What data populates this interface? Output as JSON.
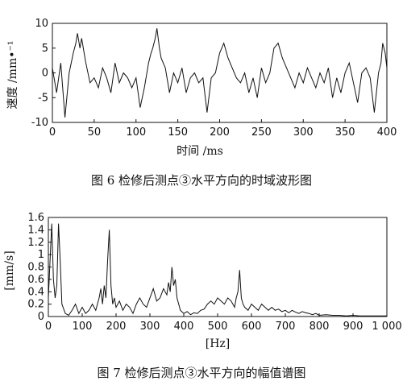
{
  "chart_data": [
    {
      "type": "line",
      "title": "",
      "caption": "图 6   检修后测点③水平方向的时域波形图",
      "xlabel": "时间 /ms",
      "ylabel": "速度 /mm•⁻¹",
      "xlim": [
        0,
        400
      ],
      "ylim": [
        -10,
        10
      ],
      "xticks": [
        "0",
        "50",
        "100",
        "150",
        "200",
        "250",
        "300",
        "350",
        "400"
      ],
      "yticks": [
        "10",
        "5",
        "0",
        "-5",
        "-10"
      ],
      "grid": false,
      "series": [
        {
          "x": [
            0,
            5,
            10,
            15,
            20,
            25,
            28,
            30,
            33,
            35,
            38,
            40,
            45,
            50,
            55,
            60,
            65,
            70,
            75,
            80,
            85,
            90,
            95,
            100,
            105,
            110,
            115,
            118,
            120,
            123,
            125,
            128,
            130,
            135,
            140,
            145,
            150,
            155,
            160,
            165,
            170,
            175,
            180,
            185,
            190,
            195,
            200,
            205,
            210,
            215,
            220,
            225,
            230,
            235,
            240,
            245,
            250,
            255,
            260,
            265,
            270,
            275,
            280,
            285,
            290,
            295,
            300,
            305,
            310,
            315,
            320,
            325,
            330,
            335,
            340,
            345,
            350,
            355,
            360,
            365,
            370,
            375,
            380,
            385,
            390,
            393,
            395,
            398,
            400
          ],
          "y": [
            1,
            -4,
            2,
            -9,
            0,
            4,
            6,
            8,
            5,
            7,
            4,
            2,
            -2,
            -1,
            -3,
            1,
            -1,
            -4,
            2,
            -2,
            0,
            -1,
            -3,
            -1,
            -7,
            -3,
            2,
            4,
            5,
            7,
            9,
            5,
            3,
            1,
            -4,
            0,
            -2,
            1,
            -4,
            -1,
            0,
            -2,
            -1,
            -8,
            -1,
            0,
            4,
            6,
            3,
            1,
            -1,
            -2,
            0,
            -4,
            -1,
            -5,
            1,
            -2,
            0,
            5,
            6,
            3,
            1,
            -1,
            -3,
            0,
            -2,
            1,
            -1,
            -3,
            0,
            -2,
            1,
            -5,
            -1,
            -4,
            0,
            2,
            -2,
            -6,
            0,
            1,
            -1,
            -8,
            0,
            2,
            6,
            4,
            1
          ]
        }
      ]
    },
    {
      "type": "line",
      "title": "",
      "caption": "图 7   检修后测点③水平方向的幅值谱图",
      "xlabel": "[Hz]",
      "ylabel": "[mm/s]",
      "xlim": [
        0,
        1000
      ],
      "ylim": [
        0,
        1.6
      ],
      "xticks": [
        "0",
        "100",
        "200",
        "300",
        "400",
        "500",
        "600",
        "700",
        "800",
        "900",
        "1 000"
      ],
      "yticks": [
        "1.6",
        "1.4",
        "1.2",
        "1",
        "0.8",
        "0.6",
        "0.4",
        "0.2",
        "0"
      ],
      "grid": false,
      "series": [
        {
          "x": [
            0,
            5,
            10,
            15,
            20,
            25,
            30,
            35,
            40,
            50,
            60,
            70,
            80,
            90,
            100,
            110,
            120,
            130,
            140,
            150,
            155,
            160,
            165,
            170,
            175,
            180,
            185,
            190,
            195,
            200,
            210,
            220,
            230,
            240,
            250,
            260,
            270,
            280,
            290,
            300,
            310,
            320,
            330,
            340,
            350,
            355,
            360,
            365,
            370,
            375,
            380,
            390,
            400,
            410,
            420,
            430,
            440,
            450,
            460,
            470,
            480,
            490,
            500,
            510,
            520,
            530,
            540,
            550,
            555,
            560,
            565,
            570,
            575,
            580,
            590,
            600,
            610,
            620,
            630,
            640,
            650,
            660,
            670,
            680,
            690,
            700,
            710,
            720,
            730,
            740,
            750,
            760,
            770,
            780,
            790,
            800,
            820,
            840,
            860,
            880,
            900,
            920,
            940,
            960,
            980,
            1000
          ],
          "y": [
            0.3,
            0.9,
            1.5,
            0.6,
            0.3,
            0.5,
            1.5,
            0.9,
            0.2,
            0.05,
            0.02,
            0.1,
            0.2,
            0.05,
            0.15,
            0.05,
            0.1,
            0.2,
            0.1,
            0.3,
            0.45,
            0.2,
            0.5,
            0.3,
            0.9,
            1.4,
            0.5,
            0.2,
            0.3,
            0.15,
            0.25,
            0.1,
            0.2,
            0.15,
            0.05,
            0.2,
            0.3,
            0.2,
            0.15,
            0.3,
            0.45,
            0.25,
            0.3,
            0.45,
            0.35,
            0.55,
            0.4,
            0.8,
            0.5,
            0.6,
            0.3,
            0.1,
            0.05,
            0.08,
            0.03,
            0.06,
            0.05,
            0.1,
            0.12,
            0.2,
            0.25,
            0.2,
            0.3,
            0.25,
            0.2,
            0.3,
            0.25,
            0.15,
            0.3,
            0.4,
            0.75,
            0.3,
            0.2,
            0.15,
            0.1,
            0.2,
            0.15,
            0.1,
            0.2,
            0.15,
            0.1,
            0.15,
            0.1,
            0.12,
            0.08,
            0.1,
            0.06,
            0.1,
            0.07,
            0.05,
            0.08,
            0.06,
            0.05,
            0.03,
            0.05,
            0.02,
            0.03,
            0.02,
            0.02,
            0.01,
            0.02,
            0.01,
            0.01,
            0.01,
            0.01,
            0.01
          ]
        }
      ]
    }
  ]
}
